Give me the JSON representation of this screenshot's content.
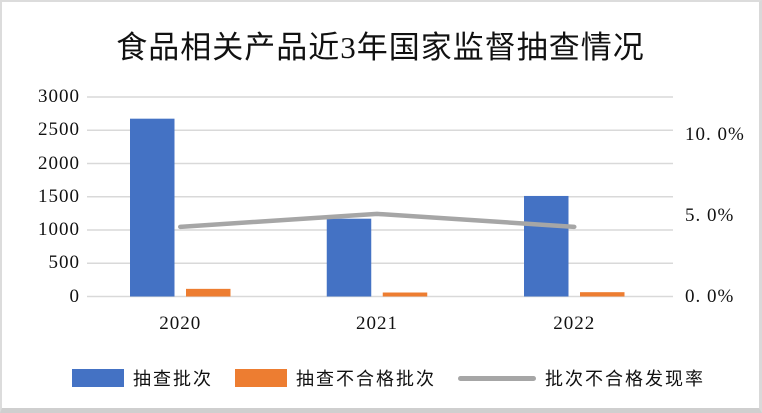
{
  "chart_data": {
    "type": "combo-bar-line",
    "title": "食品相关产品近3年国家监督抽查情况",
    "categories": [
      "2020",
      "2021",
      "2022"
    ],
    "series": [
      {
        "id": "sampled-batches",
        "name": "抽查批次",
        "type": "bar",
        "axis": "left",
        "color": "#4472C4",
        "values": [
          2674,
          1170,
          1512
        ]
      },
      {
        "id": "unqualified-batches",
        "name": "抽查不合格批次",
        "type": "bar",
        "axis": "left",
        "color": "#ED7D31",
        "values": [
          115,
          60,
          65
        ]
      },
      {
        "id": "defect-rate",
        "name": "批次不合格发现率",
        "type": "line",
        "axis": "right",
        "color": "#A6A6A6",
        "values": [
          4.3,
          5.1,
          4.3
        ],
        "unit": "%"
      }
    ],
    "left_axis": {
      "min": 0,
      "max": 3000,
      "step": 500,
      "tick_labels": [
        "3000",
        "2500",
        "2000",
        "1500",
        "1000",
        "500",
        "0"
      ]
    },
    "right_axis": {
      "tick_labels": [
        "10. 0%",
        "5. 0%",
        "0. 0%"
      ],
      "tick_values": [
        10,
        5,
        0
      ]
    },
    "grid": true,
    "gridline_color": "#D9D9D9",
    "legend_position": "bottom"
  }
}
